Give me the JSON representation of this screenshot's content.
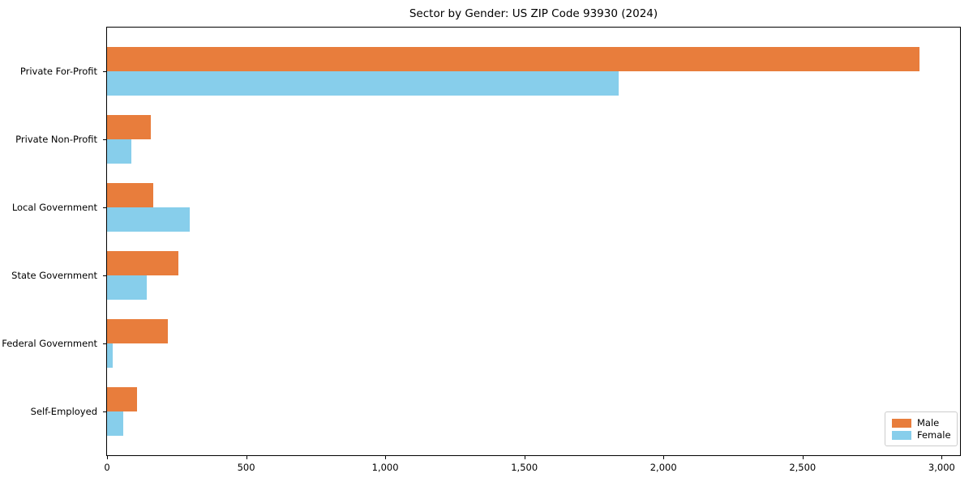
{
  "title": "Sector by Gender: US ZIP Code 93930 (2024)",
  "chart_data": {
    "type": "bar",
    "orientation": "horizontal",
    "title": "Sector by Gender: US ZIP Code 93930 (2024)",
    "categories": [
      "Private For-Profit",
      "Private Non-Profit",
      "Local Government",
      "State Government",
      "Federal Government",
      "Self-Employed"
    ],
    "series": [
      {
        "name": "Male",
        "color": "#e87d3c",
        "values": [
          2920,
          157,
          165,
          257,
          217,
          109
        ]
      },
      {
        "name": "Female",
        "color": "#87ceeb",
        "values": [
          1840,
          86,
          298,
          143,
          19,
          57
        ]
      }
    ],
    "xlabel": "",
    "ylabel": "",
    "xlim": [
      0,
      3066
    ],
    "x_ticks": [
      0,
      500,
      1000,
      1500,
      2000,
      2500,
      3000
    ],
    "x_tick_labels": [
      "0",
      "500",
      "1,000",
      "1,500",
      "2,000",
      "2,500",
      "3,000"
    ],
    "grid": false,
    "legend_position": "lower right",
    "axis_color": "#000000",
    "background_color": "#ffffff"
  }
}
